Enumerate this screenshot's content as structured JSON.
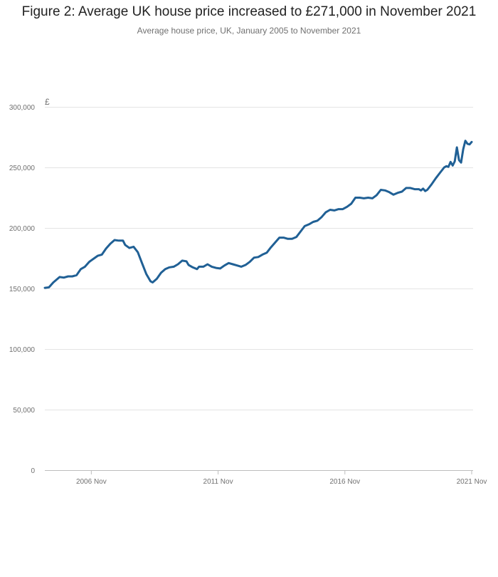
{
  "chart_data": {
    "type": "line",
    "title": "Figure 2: Average UK house price increased to £271,000 in November 2021",
    "subtitle": "Average house price, UK, January 2005 to November 2021",
    "y_unit": "£",
    "ylim": [
      0,
      300000
    ],
    "y_ticks": [
      0,
      50000,
      100000,
      150000,
      200000,
      250000,
      300000
    ],
    "y_tick_labels": [
      "0",
      "50,000",
      "100,000",
      "150,000",
      "200,000",
      "250,000",
      "300,000"
    ],
    "x_range": [
      "2005-01",
      "2021-11"
    ],
    "x_ticks": [
      "2006-11",
      "2011-11",
      "2016-11",
      "2021-11"
    ],
    "x_tick_labels": [
      "2006 Nov",
      "2011 Nov",
      "2016 Nov",
      "2021 Nov"
    ],
    "grid": true,
    "legend": "none",
    "line_color": "#206095",
    "series": [
      {
        "values": [
          [
            "2005-01",
            150500
          ],
          [
            "2005-03",
            151000
          ],
          [
            "2005-05",
            155000
          ],
          [
            "2005-08",
            159500
          ],
          [
            "2005-10",
            159000
          ],
          [
            "2005-12",
            160000
          ],
          [
            "2006-02",
            160000
          ],
          [
            "2006-04",
            161000
          ],
          [
            "2006-06",
            166000
          ],
          [
            "2006-08",
            168000
          ],
          [
            "2006-10",
            172000
          ],
          [
            "2006-12",
            174500
          ],
          [
            "2007-02",
            177000
          ],
          [
            "2007-04",
            178000
          ],
          [
            "2007-06",
            183000
          ],
          [
            "2007-08",
            187000
          ],
          [
            "2007-10",
            190000
          ],
          [
            "2007-12",
            189500
          ],
          [
            "2008-02",
            189500
          ],
          [
            "2008-03",
            186000
          ],
          [
            "2008-05",
            183500
          ],
          [
            "2008-07",
            184500
          ],
          [
            "2008-09",
            180000
          ],
          [
            "2008-11",
            171000
          ],
          [
            "2009-01",
            162000
          ],
          [
            "2009-03",
            156000
          ],
          [
            "2009-04",
            155000
          ],
          [
            "2009-06",
            158000
          ],
          [
            "2009-08",
            163000
          ],
          [
            "2009-10",
            166000
          ],
          [
            "2009-12",
            167500
          ],
          [
            "2010-02",
            168000
          ],
          [
            "2010-04",
            170000
          ],
          [
            "2010-06",
            173000
          ],
          [
            "2010-08",
            172500
          ],
          [
            "2010-09",
            169500
          ],
          [
            "2010-11",
            167500
          ],
          [
            "2011-01",
            166000
          ],
          [
            "2011-02",
            168000
          ],
          [
            "2011-04",
            168000
          ],
          [
            "2011-06",
            170000
          ],
          [
            "2011-08",
            168000
          ],
          [
            "2011-10",
            167000
          ],
          [
            "2011-12",
            166500
          ],
          [
            "2012-02",
            169000
          ],
          [
            "2012-04",
            171000
          ],
          [
            "2012-06",
            170000
          ],
          [
            "2012-08",
            169000
          ],
          [
            "2012-10",
            168000
          ],
          [
            "2012-12",
            169500
          ],
          [
            "2013-02",
            172000
          ],
          [
            "2013-04",
            175500
          ],
          [
            "2013-06",
            176000
          ],
          [
            "2013-08",
            178000
          ],
          [
            "2013-10",
            179500
          ],
          [
            "2013-12",
            184000
          ],
          [
            "2014-02",
            188000
          ],
          [
            "2014-04",
            192000
          ],
          [
            "2014-06",
            192000
          ],
          [
            "2014-08",
            191000
          ],
          [
            "2014-10",
            191000
          ],
          [
            "2014-12",
            192500
          ],
          [
            "2015-02",
            197000
          ],
          [
            "2015-04",
            201500
          ],
          [
            "2015-06",
            203000
          ],
          [
            "2015-08",
            205000
          ],
          [
            "2015-10",
            206000
          ],
          [
            "2015-12",
            209000
          ],
          [
            "2016-02",
            213000
          ],
          [
            "2016-04",
            215000
          ],
          [
            "2016-06",
            214500
          ],
          [
            "2016-08",
            215500
          ],
          [
            "2016-10",
            215500
          ],
          [
            "2016-12",
            217500
          ],
          [
            "2017-02",
            220000
          ],
          [
            "2017-04",
            225000
          ],
          [
            "2017-06",
            225000
          ],
          [
            "2017-08",
            224500
          ],
          [
            "2017-10",
            225000
          ],
          [
            "2017-12",
            224500
          ],
          [
            "2018-02",
            227000
          ],
          [
            "2018-04",
            231500
          ],
          [
            "2018-06",
            231000
          ],
          [
            "2018-08",
            229500
          ],
          [
            "2018-10",
            227500
          ],
          [
            "2018-12",
            229000
          ],
          [
            "2019-02",
            230000
          ],
          [
            "2019-04",
            233000
          ],
          [
            "2019-06",
            233000
          ],
          [
            "2019-08",
            232000
          ],
          [
            "2019-10",
            232000
          ],
          [
            "2019-11",
            231000
          ],
          [
            "2019-12",
            232500
          ],
          [
            "2020-01",
            230500
          ],
          [
            "2020-02",
            231500
          ],
          [
            "2020-04",
            236000
          ],
          [
            "2020-06",
            241000
          ],
          [
            "2020-08",
            245500
          ],
          [
            "2020-10",
            250000
          ],
          [
            "2020-11",
            251000
          ],
          [
            "2020-12",
            250500
          ],
          [
            "2021-01",
            254500
          ],
          [
            "2021-02",
            251500
          ],
          [
            "2021-03",
            255000
          ],
          [
            "2021-04",
            266500
          ],
          [
            "2021-05",
            256000
          ],
          [
            "2021-06",
            254000
          ],
          [
            "2021-07",
            265000
          ],
          [
            "2021-08",
            272000
          ],
          [
            "2021-09",
            269500
          ],
          [
            "2021-10",
            269000
          ],
          [
            "2021-11",
            271000
          ]
        ]
      }
    ]
  }
}
